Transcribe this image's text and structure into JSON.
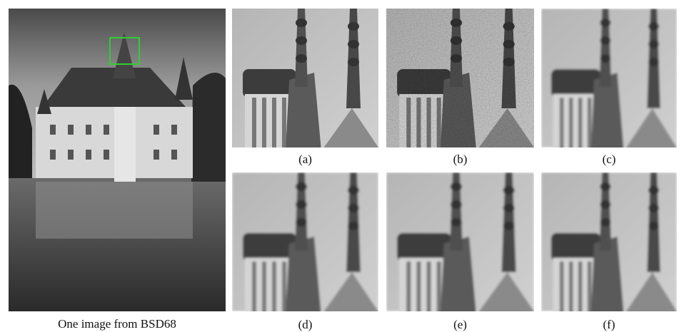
{
  "figure": {
    "caption": "One image from BSD68",
    "panels": [
      {
        "label": "(a)"
      },
      {
        "label": "(b)"
      },
      {
        "label": "(c)"
      },
      {
        "label": "(d)"
      },
      {
        "label": "(e)"
      },
      {
        "label": "(f)"
      }
    ]
  }
}
